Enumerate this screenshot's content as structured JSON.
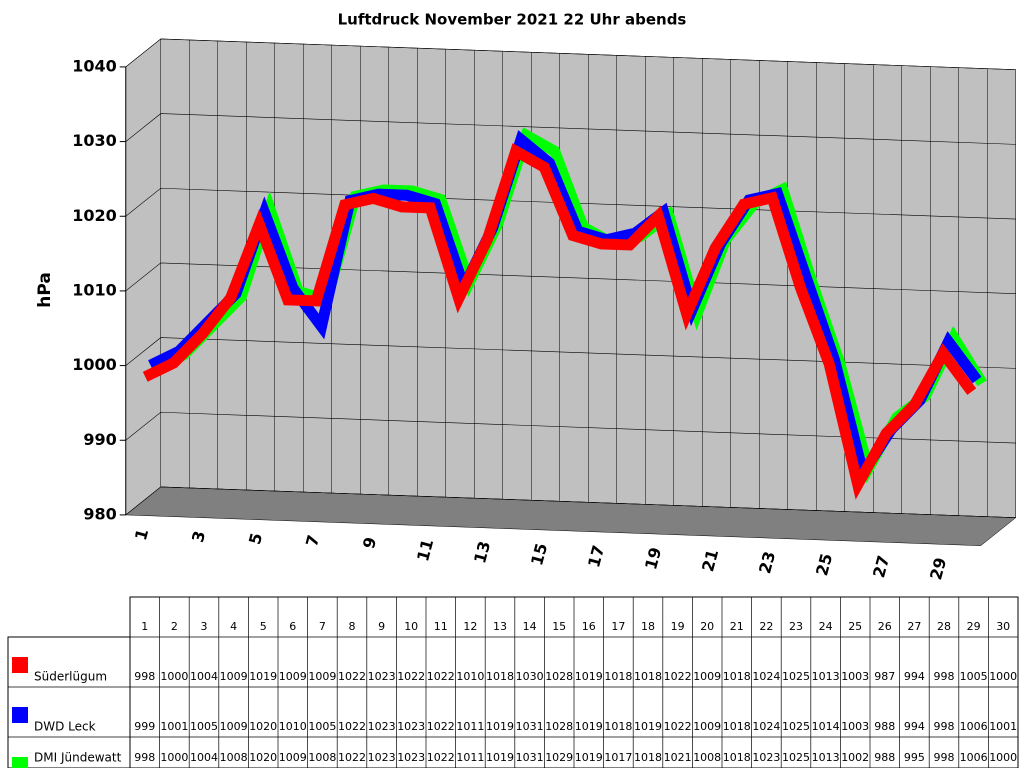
{
  "chart_data": {
    "type": "line",
    "title": "Luftdruck November 2021 22 Uhr abends",
    "y_label": "hPa",
    "categories": [
      "1",
      "2",
      "3",
      "4",
      "5",
      "6",
      "7",
      "8",
      "9",
      "10",
      "11",
      "12",
      "13",
      "14",
      "15",
      "16",
      "17",
      "18",
      "19",
      "20",
      "21",
      "22",
      "23",
      "24",
      "25",
      "26",
      "27",
      "28",
      "29",
      "30"
    ],
    "ylim": [
      980,
      1040
    ],
    "yticks": [
      980,
      990,
      1000,
      1010,
      1020,
      1030,
      1040
    ],
    "grid": true,
    "series": [
      {
        "name": "Süderlügum",
        "color": "#ff0000",
        "values": [
          998,
          1000,
          1004,
          1009,
          1019,
          1009,
          1009,
          1022,
          1023,
          1022,
          1022,
          1010,
          1018,
          1030,
          1028,
          1019,
          1018,
          1018,
          1022,
          1009,
          1018,
          1024,
          1025,
          1013,
          1003,
          987,
          994,
          998,
          1005,
          1000
        ]
      },
      {
        "name": "DWD Leck",
        "color": "#0000ff",
        "values": [
          999,
          1001,
          1005,
          1009,
          1020,
          1010,
          1005,
          1022,
          1023,
          1023,
          1022,
          1011,
          1019,
          1031,
          1028,
          1019,
          1018,
          1019,
          1022,
          1009,
          1018,
          1024,
          1025,
          1014,
          1003,
          988,
          994,
          998,
          1006,
          1001
        ]
      },
      {
        "name": "DMI Jündewatt",
        "color": "#00ff00",
        "values": [
          998,
          1000,
          1004,
          1008,
          1020,
          1009,
          1008,
          1022,
          1023,
          1023,
          1022,
          1011,
          1019,
          1031,
          1029,
          1019,
          1017,
          1018,
          1021,
          1008,
          1018,
          1023,
          1025,
          1013,
          1002,
          988,
          995,
          998,
          1006,
          1000
        ]
      }
    ]
  }
}
